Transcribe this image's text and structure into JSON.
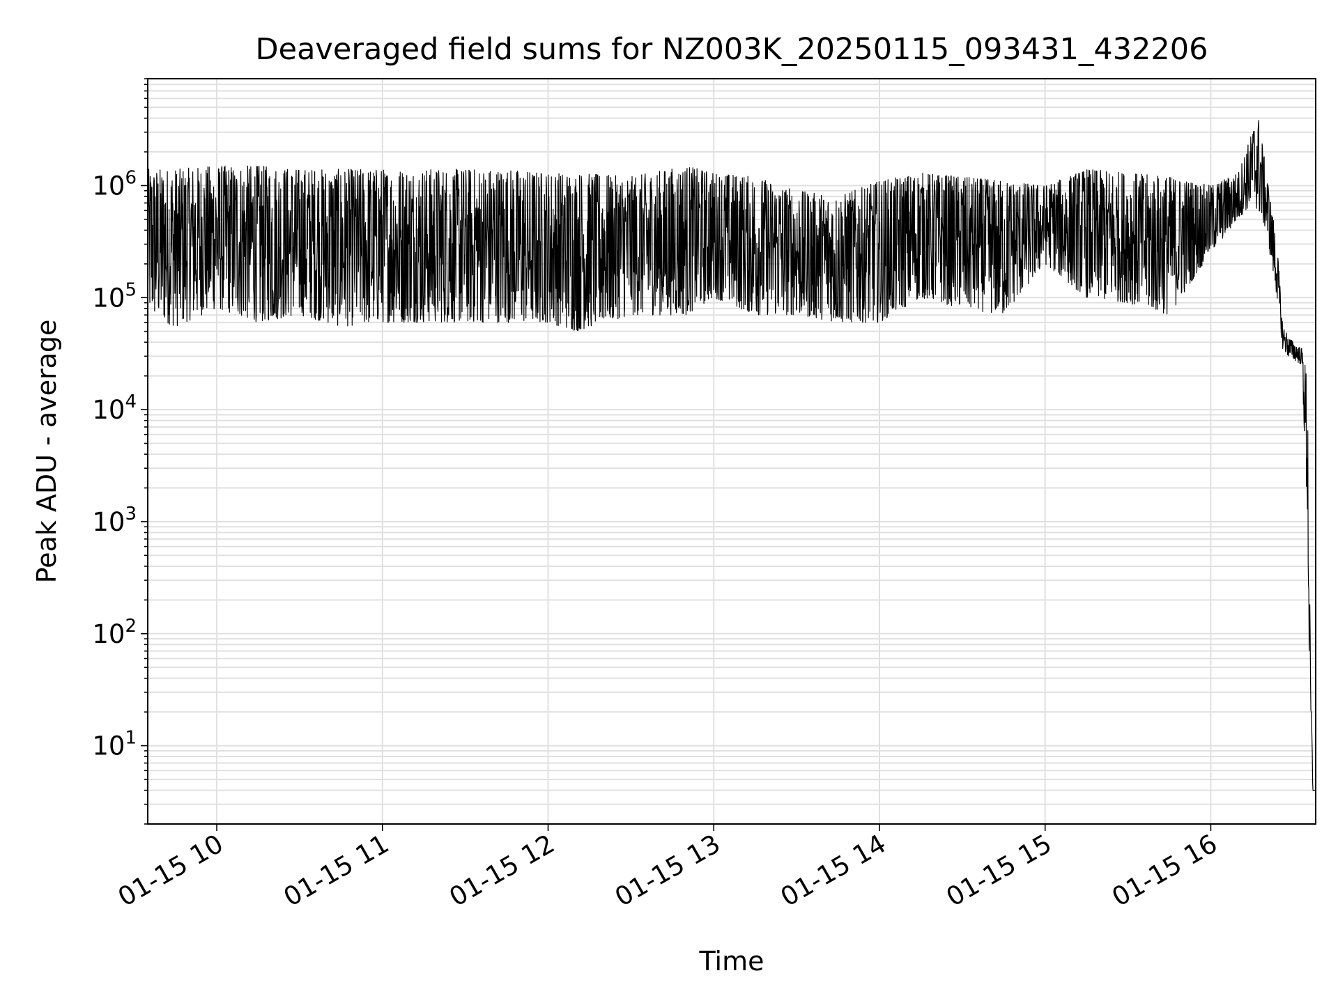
{
  "chart_data": {
    "type": "line",
    "title": "Deaveraged field sums for NZ003K_20250115_093431_432206",
    "xlabel": "Time",
    "ylabel": "Peak ADU - average",
    "yscale": "log",
    "ylim": [
      2,
      9000000
    ],
    "xlim": [
      "2025-01-15 09:35:00",
      "2025-01-15 16:38:00"
    ],
    "x_ticks": [
      {
        "x": "2025-01-15 10:00:00",
        "label": "01-15 10"
      },
      {
        "x": "2025-01-15 11:00:00",
        "label": "01-15 11"
      },
      {
        "x": "2025-01-15 12:00:00",
        "label": "01-15 12"
      },
      {
        "x": "2025-01-15 13:00:00",
        "label": "01-15 13"
      },
      {
        "x": "2025-01-15 14:00:00",
        "label": "01-15 14"
      },
      {
        "x": "2025-01-15 15:00:00",
        "label": "01-15 15"
      },
      {
        "x": "2025-01-15 16:00:00",
        "label": "01-15 16"
      }
    ],
    "y_ticks": [
      {
        "value": 10,
        "base": "10",
        "exp": "1"
      },
      {
        "value": 100,
        "base": "10",
        "exp": "2"
      },
      {
        "value": 1000,
        "base": "10",
        "exp": "3"
      },
      {
        "value": 10000,
        "base": "10",
        "exp": "4"
      },
      {
        "value": 100000,
        "base": "10",
        "exp": "5"
      },
      {
        "value": 1000000,
        "base": "10",
        "exp": "6"
      }
    ],
    "grid": true,
    "legend": "none",
    "line_color": "#000000",
    "grid_color": "#e0e0e0",
    "series": [
      {
        "x": [
          "2025-01-15 09:35:00",
          "2025-01-15 09:45:00",
          "2025-01-15 10:00:00",
          "2025-01-15 10:15:00",
          "2025-01-15 10:30:00",
          "2025-01-15 10:45:00",
          "2025-01-15 11:00:00",
          "2025-01-15 11:15:00",
          "2025-01-15 11:30:00",
          "2025-01-15 11:45:00",
          "2025-01-15 12:00:00",
          "2025-01-15 12:10:00",
          "2025-01-15 12:30:00",
          "2025-01-15 12:50:00",
          "2025-01-15 13:00:00",
          "2025-01-15 13:15:00",
          "2025-01-15 13:30:00",
          "2025-01-15 13:45:00",
          "2025-01-15 14:00:00",
          "2025-01-15 14:15:00",
          "2025-01-15 14:30:00",
          "2025-01-15 14:45:00",
          "2025-01-15 15:00:00",
          "2025-01-15 15:15:00",
          "2025-01-15 15:30:00",
          "2025-01-15 15:45:00",
          "2025-01-15 16:00:00",
          "2025-01-15 16:10:00",
          "2025-01-15 16:15:00",
          "2025-01-15 16:17:00",
          "2025-01-15 16:20:00",
          "2025-01-15 16:24:00",
          "2025-01-15 16:26:00",
          "2025-01-15 16:28:00",
          "2025-01-15 16:30:00",
          "2025-01-15 16:33:00",
          "2025-01-15 16:35:00",
          "2025-01-15 16:36:00",
          "2025-01-15 16:37:00"
        ],
        "min": [
          70000,
          55000,
          80000,
          60000,
          70000,
          55000,
          60000,
          60000,
          60000,
          60000,
          60000,
          50000,
          70000,
          70000,
          100000,
          70000,
          70000,
          60000,
          60000,
          100000,
          80000,
          70000,
          200000,
          100000,
          90000,
          70000,
          250000,
          500000,
          700000,
          600000,
          400000,
          100000,
          35000,
          30000,
          28000,
          25000,
          1000,
          10,
          4
        ],
        "max": [
          1400000,
          1400000,
          1500000,
          1500000,
          1400000,
          1400000,
          1400000,
          1400000,
          1400000,
          1400000,
          1300000,
          1300000,
          1200000,
          1500000,
          1300000,
          1200000,
          900000,
          800000,
          1100000,
          1300000,
          1200000,
          1100000,
          1000000,
          1400000,
          1300000,
          1200000,
          1000000,
          1300000,
          3000000,
          4500000,
          1400000,
          300000,
          60000,
          45000,
          40000,
          35000,
          20000,
          100,
          4
        ]
      }
    ]
  }
}
